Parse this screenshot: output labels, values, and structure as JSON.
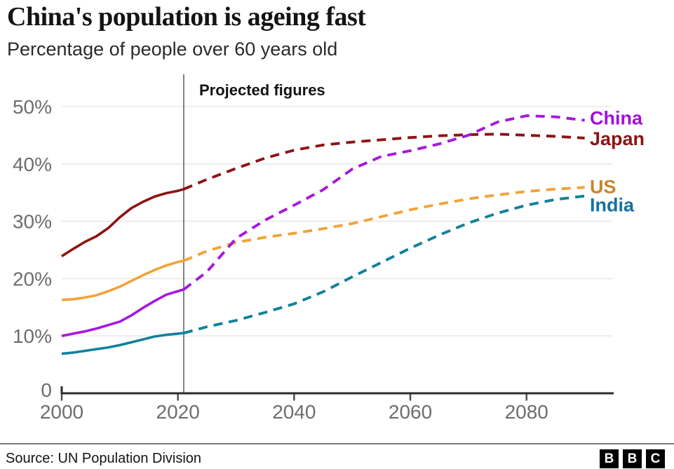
{
  "header": {
    "title": "China's population is ageing fast",
    "subtitle": "Percentage of people over 60 years old"
  },
  "chart_data": {
    "type": "line",
    "title": "China's population is ageing fast",
    "subtitle": "Percentage of people over 60 years old",
    "unit": "%",
    "annotation": "Projected figures",
    "projection_start_year": 2021,
    "x_domain": [
      2000,
      2095
    ],
    "ylim": [
      0,
      52
    ],
    "grid": "horizontal",
    "legend": "line-end labels at right",
    "line_style_historic": "solid",
    "line_style_projected": "dashed",
    "y_ticks": [
      {
        "value": 0,
        "label": "0"
      },
      {
        "value": 10,
        "label": "10%"
      },
      {
        "value": 20,
        "label": "20%"
      },
      {
        "value": 30,
        "label": "30%"
      },
      {
        "value": 40,
        "label": "40%"
      },
      {
        "value": 50,
        "label": "50%"
      }
    ],
    "x_ticks": [
      {
        "value": 2000,
        "label": "2000"
      },
      {
        "value": 2020,
        "label": "2020"
      },
      {
        "value": 2040,
        "label": "2040"
      },
      {
        "value": 2060,
        "label": "2060"
      },
      {
        "value": 2080,
        "label": "2080"
      }
    ],
    "axis_color": "#2b2b2b",
    "grid_color": "#e9e9e9",
    "tick_text_color": "#6d6d6d",
    "divider_color": "#757575",
    "series": [
      {
        "name": "China",
        "color": "#A717DE",
        "label_color": "#A30EDC",
        "historic": {
          "years": [
            2000,
            2002,
            2004,
            2006,
            2008,
            2010,
            2012,
            2014,
            2016,
            2018,
            2020,
            2021
          ],
          "values": [
            10.0,
            10.4,
            10.8,
            11.3,
            11.9,
            12.5,
            13.6,
            14.9,
            16.1,
            17.2,
            17.8,
            18.1
          ]
        },
        "projected": {
          "years": [
            2021,
            2025,
            2030,
            2035,
            2040,
            2045,
            2050,
            2055,
            2060,
            2065,
            2070,
            2075,
            2080,
            2085,
            2090
          ],
          "values": [
            18.1,
            21.2,
            27.0,
            30.2,
            32.8,
            35.5,
            39.1,
            41.3,
            42.3,
            43.5,
            45.0,
            47.3,
            48.4,
            48.2,
            47.6
          ]
        }
      },
      {
        "name": "Japan",
        "color": "#8E1313",
        "label_color": "#8E1313",
        "historic": {
          "years": [
            2000,
            2002,
            2004,
            2006,
            2008,
            2010,
            2012,
            2014,
            2016,
            2018,
            2020,
            2021
          ],
          "values": [
            23.9,
            25.2,
            26.4,
            27.4,
            28.8,
            30.7,
            32.3,
            33.4,
            34.3,
            34.9,
            35.3,
            35.6
          ]
        },
        "projected": {
          "years": [
            2021,
            2025,
            2030,
            2035,
            2040,
            2045,
            2050,
            2055,
            2060,
            2065,
            2070,
            2075,
            2080,
            2085,
            2090
          ],
          "values": [
            35.6,
            37.3,
            39.2,
            41.0,
            42.4,
            43.3,
            43.8,
            44.2,
            44.6,
            44.9,
            45.1,
            45.2,
            45.0,
            44.8,
            44.5
          ]
        }
      },
      {
        "name": "US",
        "color": "#F2A33A",
        "label_color": "#C9862A",
        "historic": {
          "years": [
            2000,
            2002,
            2004,
            2006,
            2008,
            2010,
            2012,
            2014,
            2016,
            2018,
            2020,
            2021
          ],
          "values": [
            16.3,
            16.4,
            16.7,
            17.1,
            17.8,
            18.6,
            19.6,
            20.6,
            21.5,
            22.3,
            22.9,
            23.1
          ]
        },
        "projected": {
          "years": [
            2021,
            2025,
            2030,
            2035,
            2040,
            2045,
            2050,
            2055,
            2060,
            2065,
            2070,
            2075,
            2080,
            2085,
            2090
          ],
          "values": [
            23.1,
            24.8,
            26.3,
            27.2,
            27.9,
            28.7,
            29.6,
            30.8,
            32.0,
            33.0,
            33.9,
            34.6,
            35.2,
            35.6,
            35.9
          ]
        }
      },
      {
        "name": "India",
        "color": "#13809B",
        "label_color": "#1472A0",
        "historic": {
          "years": [
            2000,
            2002,
            2004,
            2006,
            2008,
            2010,
            2012,
            2014,
            2016,
            2018,
            2020,
            2021
          ],
          "values": [
            6.9,
            7.1,
            7.4,
            7.7,
            8.0,
            8.4,
            8.9,
            9.4,
            9.9,
            10.2,
            10.4,
            10.5
          ]
        },
        "projected": {
          "years": [
            2021,
            2025,
            2030,
            2035,
            2040,
            2045,
            2050,
            2055,
            2060,
            2065,
            2070,
            2075,
            2080,
            2085,
            2090
          ],
          "values": [
            10.5,
            11.6,
            12.7,
            14.1,
            15.6,
            17.7,
            20.3,
            22.8,
            25.3,
            27.6,
            29.7,
            31.4,
            32.8,
            33.8,
            34.4
          ]
        }
      }
    ]
  },
  "footer": {
    "source": "Source: UN Population Division",
    "logo_letters": [
      "B",
      "B",
      "C"
    ]
  }
}
